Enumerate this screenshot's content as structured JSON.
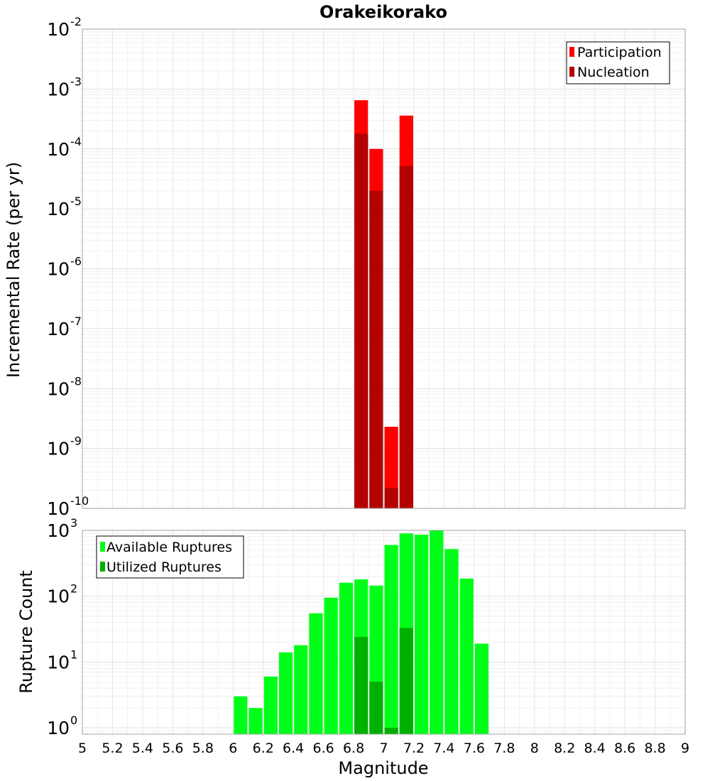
{
  "title": "Orakeikorako",
  "x_axis_label": "Magnitude",
  "chart_data": [
    {
      "type": "bar",
      "ylabel": "Incremental Rate (per yr)",
      "y_scale": "log",
      "ylim": [
        1e-10,
        0.01
      ],
      "xlim": [
        5,
        9
      ],
      "grid": true,
      "legend_position": "top-right",
      "series": [
        {
          "name": "Participation",
          "color": "#ff0000",
          "points": [
            {
              "x": 6.85,
              "y": 0.00065
            },
            {
              "x": 6.95,
              "y": 0.0001
            },
            {
              "x": 7.05,
              "y": 2.3e-09
            },
            {
              "x": 7.15,
              "y": 0.00036
            }
          ]
        },
        {
          "name": "Nucleation",
          "color": "#b30000",
          "points": [
            {
              "x": 6.85,
              "y": 0.00018
            },
            {
              "x": 6.95,
              "y": 2e-05
            },
            {
              "x": 7.05,
              "y": 2.2e-10
            },
            {
              "x": 7.15,
              "y": 5.2e-05
            }
          ]
        }
      ]
    },
    {
      "type": "bar",
      "ylabel": "Rupture Count",
      "y_scale": "log",
      "ylim": [
        0.8,
        1000
      ],
      "xlim": [
        5,
        9
      ],
      "grid": true,
      "legend_position": "top-left",
      "series": [
        {
          "name": "Available Ruptures",
          "color": "#00ff18",
          "points": [
            {
              "x": 6.05,
              "y": 3
            },
            {
              "x": 6.15,
              "y": 2
            },
            {
              "x": 6.25,
              "y": 6
            },
            {
              "x": 6.35,
              "y": 14
            },
            {
              "x": 6.45,
              "y": 18
            },
            {
              "x": 6.55,
              "y": 55
            },
            {
              "x": 6.65,
              "y": 95
            },
            {
              "x": 6.75,
              "y": 160
            },
            {
              "x": 6.85,
              "y": 180
            },
            {
              "x": 6.95,
              "y": 145
            },
            {
              "x": 7.05,
              "y": 600
            },
            {
              "x": 7.15,
              "y": 900
            },
            {
              "x": 7.25,
              "y": 860
            },
            {
              "x": 7.35,
              "y": 1000
            },
            {
              "x": 7.45,
              "y": 520
            },
            {
              "x": 7.55,
              "y": 185
            },
            {
              "x": 7.65,
              "y": 19
            }
          ]
        },
        {
          "name": "Utilized Ruptures",
          "color": "#00b000",
          "points": [
            {
              "x": 6.85,
              "y": 24
            },
            {
              "x": 6.95,
              "y": 5
            },
            {
              "x": 7.05,
              "y": 1
            },
            {
              "x": 7.15,
              "y": 33
            }
          ]
        }
      ]
    }
  ],
  "x_ticks": [
    "5",
    "5.2",
    "5.4",
    "5.6",
    "5.8",
    "6",
    "6.2",
    "6.4",
    "6.6",
    "6.8",
    "7",
    "7.2",
    "7.4",
    "7.6",
    "7.8",
    "8",
    "8.2",
    "8.4",
    "8.6",
    "8.8",
    "9"
  ],
  "top_y_ticks": [
    {
      "base": "10",
      "exp": "-10",
      "value": 1e-10
    },
    {
      "base": "10",
      "exp": "-9",
      "value": 1e-09
    },
    {
      "base": "10",
      "exp": "-8",
      "value": 1e-08
    },
    {
      "base": "10",
      "exp": "-7",
      "value": 1e-07
    },
    {
      "base": "10",
      "exp": "-6",
      "value": 1e-06
    },
    {
      "base": "10",
      "exp": "-5",
      "value": 1e-05
    },
    {
      "base": "10",
      "exp": "-4",
      "value": 0.0001
    },
    {
      "base": "10",
      "exp": "-3",
      "value": 0.001
    },
    {
      "base": "10",
      "exp": "-2",
      "value": 0.01
    }
  ],
  "bottom_y_ticks": [
    {
      "base": "10",
      "exp": "0",
      "value": 1
    },
    {
      "base": "10",
      "exp": "1",
      "value": 10
    },
    {
      "base": "10",
      "exp": "2",
      "value": 100
    },
    {
      "base": "10",
      "exp": "3",
      "value": 1000
    }
  ]
}
